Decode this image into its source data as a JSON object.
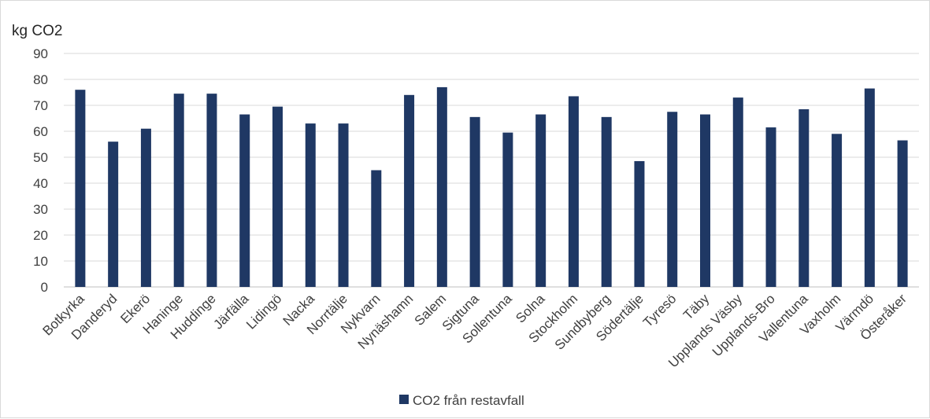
{
  "chart_data": {
    "type": "bar",
    "ylabel": "kg CO2",
    "ylim": [
      0,
      90
    ],
    "yticks": [
      0,
      10,
      20,
      30,
      40,
      50,
      60,
      70,
      80,
      90
    ],
    "grid": true,
    "legend_position": "bottom",
    "categories": [
      "Botkyrka",
      "Danderyd",
      "Ekerö",
      "Haninge",
      "Huddinge",
      "Järfälla",
      "Lidingö",
      "Nacka",
      "Norrtälje",
      "Nykvarn",
      "Nynäshamn",
      "Salem",
      "Sigtuna",
      "Sollentuna",
      "Solna",
      "Stockholm",
      "Sundbyberg",
      "Södertälje",
      "Tyresö",
      "Täby",
      "Upplands Väsby",
      "Upplands-Bro",
      "Vallentuna",
      "Vaxholm",
      "Värmdö",
      "Österåker"
    ],
    "series": [
      {
        "name": "CO2 från restavfall",
        "color": "#1f3864",
        "values": [
          76,
          56,
          61,
          74.5,
          74.5,
          66.5,
          69.5,
          63,
          63,
          45,
          74,
          77,
          65.5,
          59.5,
          66.5,
          73.5,
          65.5,
          48.5,
          67.5,
          66.5,
          73,
          61.5,
          68.5,
          59,
          76.5,
          56.5
        ]
      }
    ]
  }
}
